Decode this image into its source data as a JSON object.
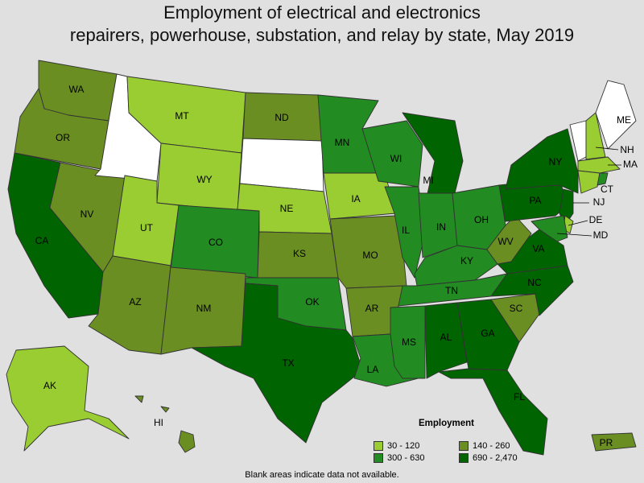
{
  "title_line1": "Employment of electrical and electronics",
  "title_line2": "repairers, powerhouse, substation, and relay by state, May 2019",
  "legend": {
    "title": "Employment",
    "ranges": [
      {
        "label": "30 - 120",
        "color": "#9acd32"
      },
      {
        "label": "140 - 260",
        "color": "#6b8e23"
      },
      {
        "label": "300 - 630",
        "color": "#228b22"
      },
      {
        "label": "690 - 2,470",
        "color": "#006400"
      }
    ]
  },
  "colors": {
    "none": "#ffffff",
    "c1": "#9acd32",
    "c2": "#6b8e23",
    "c3": "#228b22",
    "c4": "#006400"
  },
  "states": [
    {
      "id": "WA",
      "label": "WA",
      "cls": "c2"
    },
    {
      "id": "OR",
      "label": "OR",
      "cls": "c2"
    },
    {
      "id": "CA",
      "label": "CA",
      "cls": "c4"
    },
    {
      "id": "NV",
      "label": "NV",
      "cls": "c2"
    },
    {
      "id": "ID",
      "label": "",
      "cls": "none"
    },
    {
      "id": "MT",
      "label": "MT",
      "cls": "c1"
    },
    {
      "id": "WY",
      "label": "WY",
      "cls": "c1"
    },
    {
      "id": "UT",
      "label": "UT",
      "cls": "c1"
    },
    {
      "id": "AZ",
      "label": "AZ",
      "cls": "c2"
    },
    {
      "id": "CO",
      "label": "CO",
      "cls": "c3"
    },
    {
      "id": "NM",
      "label": "NM",
      "cls": "c2"
    },
    {
      "id": "ND",
      "label": "ND",
      "cls": "c2"
    },
    {
      "id": "SD",
      "label": "",
      "cls": "none"
    },
    {
      "id": "NE",
      "label": "NE",
      "cls": "c1"
    },
    {
      "id": "KS",
      "label": "KS",
      "cls": "c2"
    },
    {
      "id": "OK",
      "label": "OK",
      "cls": "c3"
    },
    {
      "id": "TX",
      "label": "TX",
      "cls": "c4"
    },
    {
      "id": "MN",
      "label": "MN",
      "cls": "c3"
    },
    {
      "id": "IA",
      "label": "IA",
      "cls": "c1"
    },
    {
      "id": "MO",
      "label": "MO",
      "cls": "c2"
    },
    {
      "id": "AR",
      "label": "AR",
      "cls": "c2"
    },
    {
      "id": "LA",
      "label": "LA",
      "cls": "c3"
    },
    {
      "id": "WI",
      "label": "WI",
      "cls": "c3"
    },
    {
      "id": "IL",
      "label": "IL",
      "cls": "c3"
    },
    {
      "id": "MI",
      "label": "MI",
      "cls": "c4"
    },
    {
      "id": "IN",
      "label": "IN",
      "cls": "c3"
    },
    {
      "id": "OH",
      "label": "OH",
      "cls": "c3"
    },
    {
      "id": "KY",
      "label": "KY",
      "cls": "c3"
    },
    {
      "id": "TN",
      "label": "TN",
      "cls": "c3"
    },
    {
      "id": "MS",
      "label": "MS",
      "cls": "c3"
    },
    {
      "id": "AL",
      "label": "AL",
      "cls": "c4"
    },
    {
      "id": "GA",
      "label": "GA",
      "cls": "c4"
    },
    {
      "id": "FL",
      "label": "FL",
      "cls": "c4"
    },
    {
      "id": "SC",
      "label": "SC",
      "cls": "c2"
    },
    {
      "id": "NC",
      "label": "NC",
      "cls": "c4"
    },
    {
      "id": "VA",
      "label": "VA",
      "cls": "c4"
    },
    {
      "id": "WV",
      "label": "WV",
      "cls": "c2"
    },
    {
      "id": "PA",
      "label": "PA",
      "cls": "c4"
    },
    {
      "id": "NY",
      "label": "NY",
      "cls": "c4"
    },
    {
      "id": "VT",
      "label": "",
      "cls": "none"
    },
    {
      "id": "NH",
      "label": "NH",
      "cls": "c1"
    },
    {
      "id": "ME",
      "label": "ME",
      "cls": "none"
    },
    {
      "id": "MA",
      "label": "MA",
      "cls": "c1"
    },
    {
      "id": "CT",
      "label": "CT",
      "cls": "c1"
    },
    {
      "id": "RI",
      "label": "",
      "cls": "c3"
    },
    {
      "id": "NJ",
      "label": "NJ",
      "cls": "c4"
    },
    {
      "id": "DE",
      "label": "DE",
      "cls": "c1"
    },
    {
      "id": "MD",
      "label": "MD",
      "cls": "c3"
    },
    {
      "id": "AK",
      "label": "AK",
      "cls": "c1"
    },
    {
      "id": "HI",
      "label": "HI",
      "cls": "c2"
    },
    {
      "id": "PR",
      "label": "PR",
      "cls": "c2"
    }
  ],
  "note": "Blank areas indicate data not available."
}
